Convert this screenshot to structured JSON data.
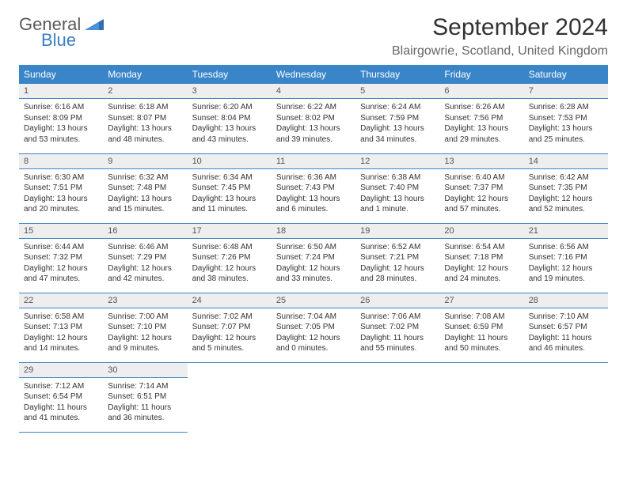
{
  "brand": {
    "word1": "General",
    "word2": "Blue"
  },
  "title": "September 2024",
  "location": "Blairgowrie, Scotland, United Kingdom",
  "colors": {
    "header_bg": "#3a85c7",
    "header_fg": "#ffffff",
    "daynum_bg": "#eeeeee",
    "rule": "#3a85c7",
    "brand_gray": "#5a5a5a",
    "brand_blue": "#3a7ec2"
  },
  "day_headers": [
    "Sunday",
    "Monday",
    "Tuesday",
    "Wednesday",
    "Thursday",
    "Friday",
    "Saturday"
  ],
  "weeks": [
    [
      {
        "n": "1",
        "sr": "6:16 AM",
        "ss": "8:09 PM",
        "dl": "13 hours and 53 minutes."
      },
      {
        "n": "2",
        "sr": "6:18 AM",
        "ss": "8:07 PM",
        "dl": "13 hours and 48 minutes."
      },
      {
        "n": "3",
        "sr": "6:20 AM",
        "ss": "8:04 PM",
        "dl": "13 hours and 43 minutes."
      },
      {
        "n": "4",
        "sr": "6:22 AM",
        "ss": "8:02 PM",
        "dl": "13 hours and 39 minutes."
      },
      {
        "n": "5",
        "sr": "6:24 AM",
        "ss": "7:59 PM",
        "dl": "13 hours and 34 minutes."
      },
      {
        "n": "6",
        "sr": "6:26 AM",
        "ss": "7:56 PM",
        "dl": "13 hours and 29 minutes."
      },
      {
        "n": "7",
        "sr": "6:28 AM",
        "ss": "7:53 PM",
        "dl": "13 hours and 25 minutes."
      }
    ],
    [
      {
        "n": "8",
        "sr": "6:30 AM",
        "ss": "7:51 PM",
        "dl": "13 hours and 20 minutes."
      },
      {
        "n": "9",
        "sr": "6:32 AM",
        "ss": "7:48 PM",
        "dl": "13 hours and 15 minutes."
      },
      {
        "n": "10",
        "sr": "6:34 AM",
        "ss": "7:45 PM",
        "dl": "13 hours and 11 minutes."
      },
      {
        "n": "11",
        "sr": "6:36 AM",
        "ss": "7:43 PM",
        "dl": "13 hours and 6 minutes."
      },
      {
        "n": "12",
        "sr": "6:38 AM",
        "ss": "7:40 PM",
        "dl": "13 hours and 1 minute."
      },
      {
        "n": "13",
        "sr": "6:40 AM",
        "ss": "7:37 PM",
        "dl": "12 hours and 57 minutes."
      },
      {
        "n": "14",
        "sr": "6:42 AM",
        "ss": "7:35 PM",
        "dl": "12 hours and 52 minutes."
      }
    ],
    [
      {
        "n": "15",
        "sr": "6:44 AM",
        "ss": "7:32 PM",
        "dl": "12 hours and 47 minutes."
      },
      {
        "n": "16",
        "sr": "6:46 AM",
        "ss": "7:29 PM",
        "dl": "12 hours and 42 minutes."
      },
      {
        "n": "17",
        "sr": "6:48 AM",
        "ss": "7:26 PM",
        "dl": "12 hours and 38 minutes."
      },
      {
        "n": "18",
        "sr": "6:50 AM",
        "ss": "7:24 PM",
        "dl": "12 hours and 33 minutes."
      },
      {
        "n": "19",
        "sr": "6:52 AM",
        "ss": "7:21 PM",
        "dl": "12 hours and 28 minutes."
      },
      {
        "n": "20",
        "sr": "6:54 AM",
        "ss": "7:18 PM",
        "dl": "12 hours and 24 minutes."
      },
      {
        "n": "21",
        "sr": "6:56 AM",
        "ss": "7:16 PM",
        "dl": "12 hours and 19 minutes."
      }
    ],
    [
      {
        "n": "22",
        "sr": "6:58 AM",
        "ss": "7:13 PM",
        "dl": "12 hours and 14 minutes."
      },
      {
        "n": "23",
        "sr": "7:00 AM",
        "ss": "7:10 PM",
        "dl": "12 hours and 9 minutes."
      },
      {
        "n": "24",
        "sr": "7:02 AM",
        "ss": "7:07 PM",
        "dl": "12 hours and 5 minutes."
      },
      {
        "n": "25",
        "sr": "7:04 AM",
        "ss": "7:05 PM",
        "dl": "12 hours and 0 minutes."
      },
      {
        "n": "26",
        "sr": "7:06 AM",
        "ss": "7:02 PM",
        "dl": "11 hours and 55 minutes."
      },
      {
        "n": "27",
        "sr": "7:08 AM",
        "ss": "6:59 PM",
        "dl": "11 hours and 50 minutes."
      },
      {
        "n": "28",
        "sr": "7:10 AM",
        "ss": "6:57 PM",
        "dl": "11 hours and 46 minutes."
      }
    ],
    [
      {
        "n": "29",
        "sr": "7:12 AM",
        "ss": "6:54 PM",
        "dl": "11 hours and 41 minutes."
      },
      {
        "n": "30",
        "sr": "7:14 AM",
        "ss": "6:51 PM",
        "dl": "11 hours and 36 minutes."
      },
      null,
      null,
      null,
      null,
      null
    ]
  ],
  "labels": {
    "sunrise": "Sunrise:",
    "sunset": "Sunset:",
    "daylight": "Daylight:"
  }
}
